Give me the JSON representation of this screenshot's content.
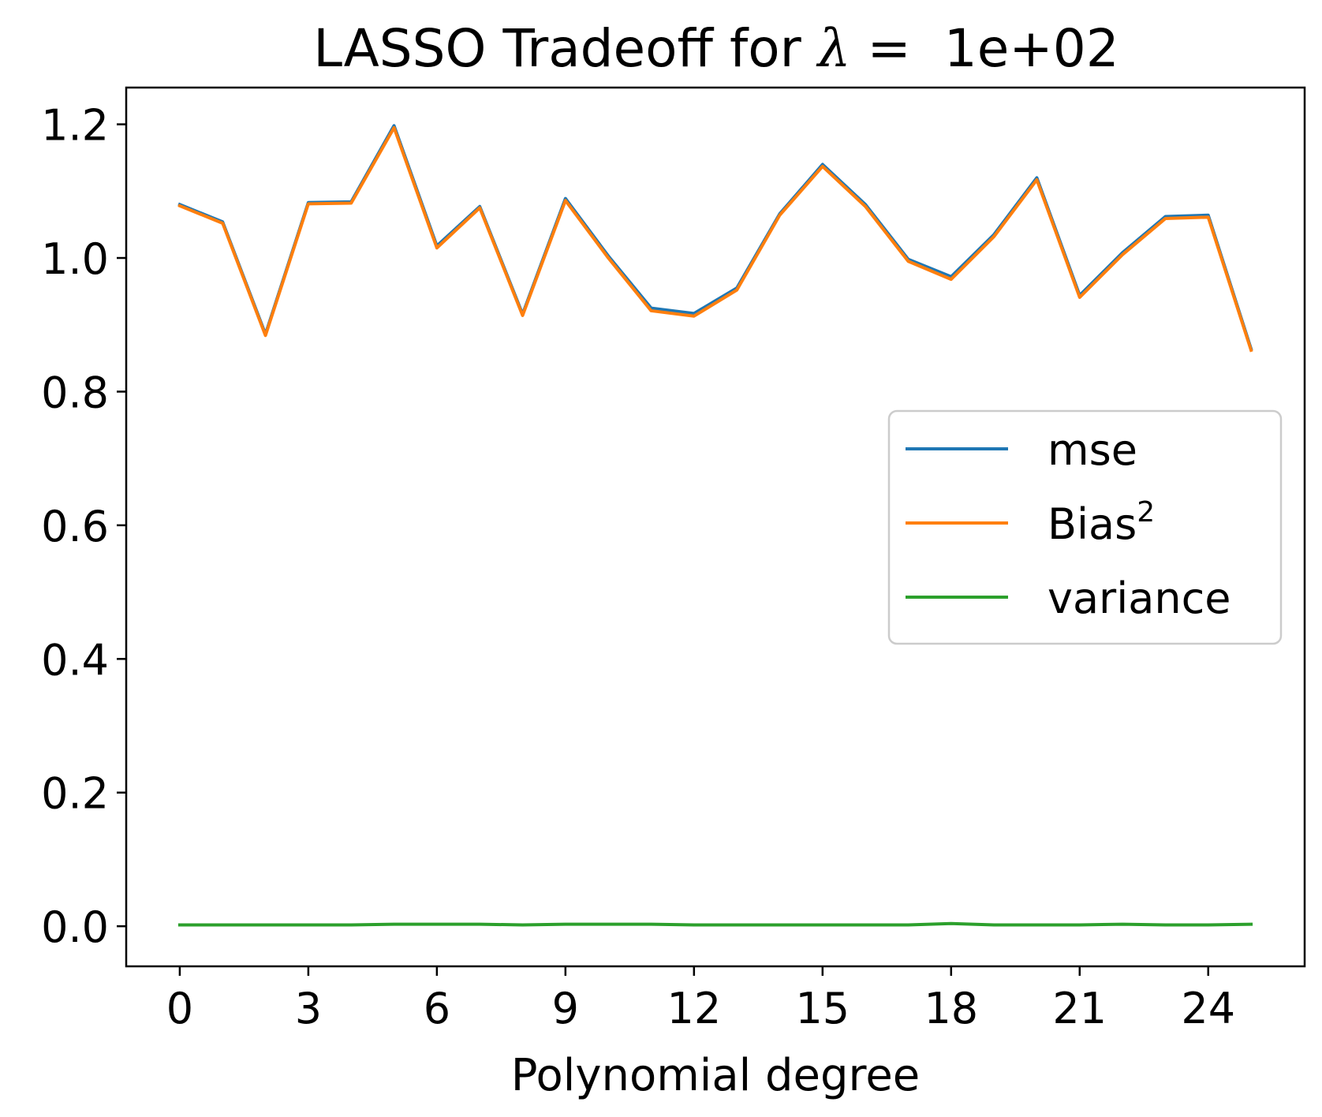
{
  "chart_data": {
    "type": "line",
    "title": "LASSO Tradeoff for λ =  1e+02",
    "title_parts": {
      "prefix": "LASSO Tradeoff for ",
      "symbol": "λ",
      "suffix": " =  1e+02"
    },
    "xlabel": "Polynomial degree",
    "ylabel": "",
    "x": [
      0,
      1,
      2,
      3,
      4,
      5,
      6,
      7,
      8,
      9,
      10,
      11,
      12,
      13,
      14,
      15,
      16,
      17,
      18,
      19,
      20,
      21,
      22,
      23,
      24,
      25
    ],
    "xlim": [
      -1.25,
      26.25
    ],
    "ylim": [
      -0.06,
      1.255
    ],
    "x_ticks": [
      0,
      3,
      6,
      9,
      12,
      15,
      18,
      21,
      24
    ],
    "x_tick_labels": [
      "0",
      "3",
      "6",
      "9",
      "12",
      "15",
      "18",
      "21",
      "24"
    ],
    "y_ticks": [
      0.0,
      0.2,
      0.4,
      0.6,
      0.8,
      1.0,
      1.2
    ],
    "y_tick_labels": [
      "0.0",
      "0.2",
      "0.4",
      "0.6",
      "0.8",
      "1.0",
      "1.2"
    ],
    "grid": false,
    "legend_position": "center-right",
    "series": [
      {
        "name": "mse",
        "color": "#1f77b4",
        "values": [
          1.08,
          1.054,
          0.886,
          1.083,
          1.084,
          1.198,
          1.018,
          1.077,
          0.916,
          1.089,
          1.003,
          0.925,
          0.917,
          0.955,
          1.066,
          1.14,
          1.08,
          0.998,
          0.972,
          1.035,
          1.12,
          0.944,
          1.008,
          1.062,
          1.064,
          0.864
        ]
      },
      {
        "name": "Bias",
        "name_superscript": "2",
        "color": "#ff7f0e",
        "values": [
          1.078,
          1.052,
          0.884,
          1.081,
          1.082,
          1.195,
          1.015,
          1.075,
          0.914,
          1.086,
          1.0,
          0.921,
          0.913,
          0.952,
          1.064,
          1.137,
          1.077,
          0.995,
          0.968,
          1.032,
          1.117,
          0.941,
          1.005,
          1.059,
          1.061,
          0.862
        ]
      },
      {
        "name": "variance",
        "color": "#2ca02c",
        "values": [
          0.002,
          0.002,
          0.002,
          0.002,
          0.002,
          0.003,
          0.003,
          0.003,
          0.002,
          0.003,
          0.003,
          0.003,
          0.002,
          0.002,
          0.002,
          0.002,
          0.002,
          0.002,
          0.004,
          0.002,
          0.002,
          0.002,
          0.003,
          0.002,
          0.002,
          0.003
        ]
      }
    ]
  }
}
